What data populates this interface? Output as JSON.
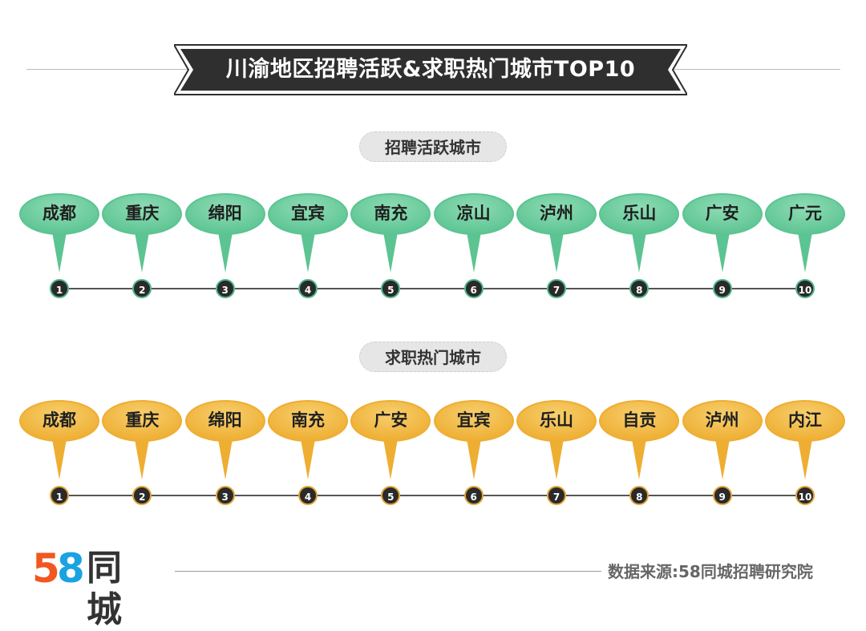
{
  "title": "川渝地区招聘活跃&求职热门城市TOP10",
  "sections": [
    {
      "label": "招聘活跃城市",
      "theme": "green",
      "fill": "#5cc492",
      "fill_light": "#8fdcb5",
      "cities": [
        "成都",
        "重庆",
        "绵阳",
        "宜宾",
        "南充",
        "凉山",
        "泸州",
        "乐山",
        "广安",
        "广元"
      ],
      "ranks": [
        "1",
        "2",
        "3",
        "4",
        "5",
        "6",
        "7",
        "8",
        "9",
        "10"
      ]
    },
    {
      "label": "求职热门城市",
      "theme": "orange",
      "fill": "#eeae32",
      "fill_light": "#f7cf6e",
      "cities": [
        "成都",
        "重庆",
        "绵阳",
        "南充",
        "广安",
        "宜宾",
        "乐山",
        "自贡",
        "泸州",
        "内江"
      ],
      "ranks": [
        "1",
        "2",
        "3",
        "4",
        "5",
        "6",
        "7",
        "8",
        "9",
        "10"
      ]
    }
  ],
  "logo": {
    "digit1": "5",
    "digit2": "8",
    "name": "同城",
    "color1": "#f1571f",
    "color2": "#1aa3e0"
  },
  "source": "数据来源:58同城招聘研究院"
}
